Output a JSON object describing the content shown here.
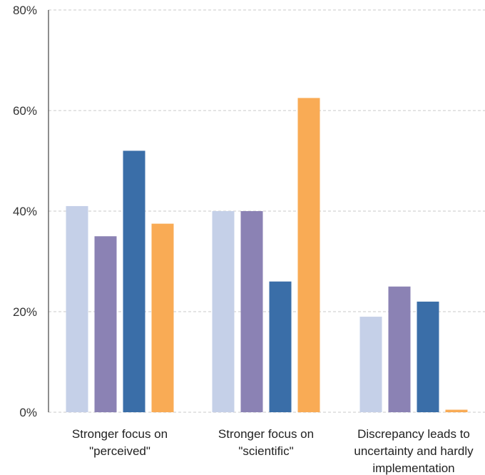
{
  "chart_data": {
    "type": "bar",
    "title": "",
    "xlabel": "",
    "ylabel": "",
    "ylim": [
      0,
      80
    ],
    "yticks": [
      0,
      20,
      40,
      60,
      80
    ],
    "ytick_labels": [
      "0%",
      "20%",
      "40%",
      "60%",
      "80%"
    ],
    "grid": true,
    "legend": "none",
    "categories": [
      [
        "Stronger focus on",
        "\"perceived\""
      ],
      [
        "Stronger focus on",
        "\"scientific\""
      ],
      [
        "Discrepancy leads to",
        "uncertainty and hardly",
        "implementation"
      ]
    ],
    "series": [
      {
        "color": "#c5d0e8",
        "values": [
          41,
          40,
          19
        ]
      },
      {
        "color": "#8b82b4",
        "values": [
          35,
          40,
          25
        ]
      },
      {
        "color": "#3a6ea8",
        "values": [
          52,
          26,
          22
        ]
      },
      {
        "color": "#f9ab55",
        "values": [
          37.5,
          62.5,
          0.5
        ]
      }
    ]
  }
}
